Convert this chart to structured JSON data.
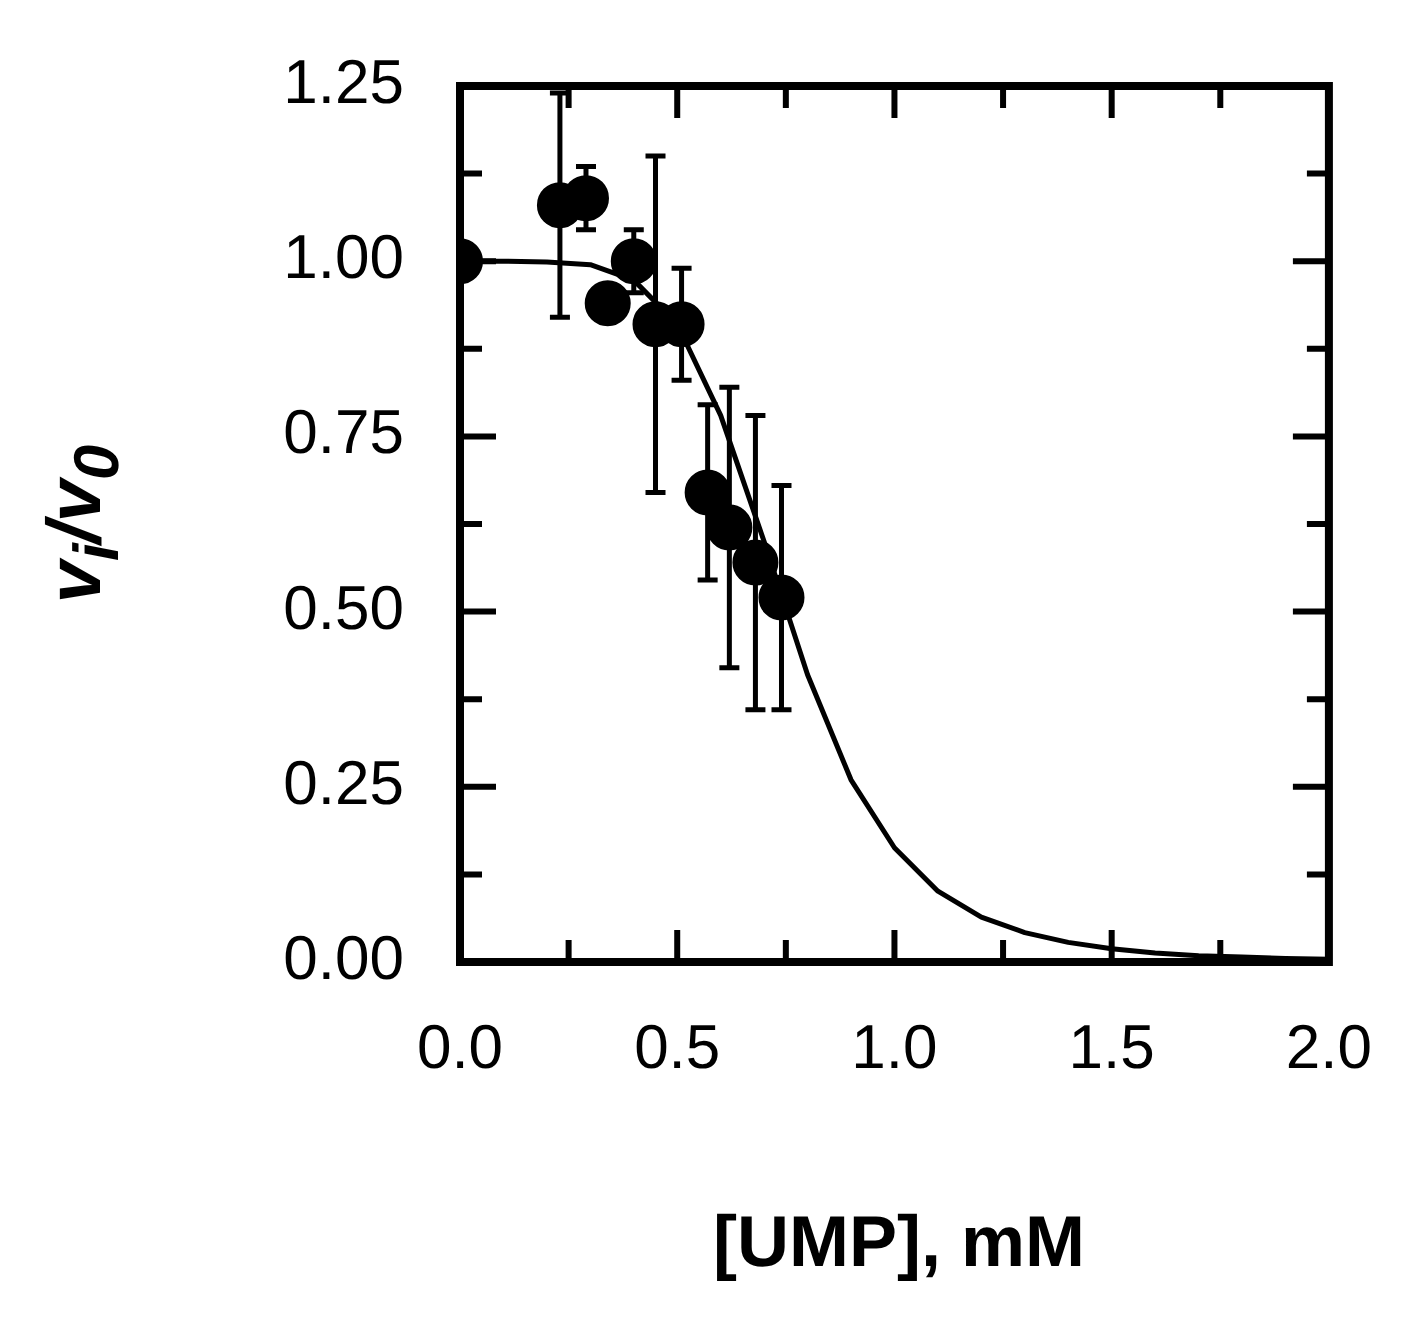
{
  "chart_data": {
    "type": "scatter",
    "xlabel": "[UMP], mM",
    "ylabel": "v$_{i}$/v$_{0}$",
    "xlim": [
      0,
      2
    ],
    "ylim": [
      0,
      1.25
    ],
    "xticks": [
      {
        "value": 0,
        "label": "0.0"
      },
      {
        "value": 0.25,
        "label": null
      },
      {
        "value": 0.5,
        "label": "0.5"
      },
      {
        "value": 0.75,
        "label": null
      },
      {
        "value": 1,
        "label": "1.0"
      },
      {
        "value": 1.25,
        "label": null
      },
      {
        "value": 1.5,
        "label": "1.5"
      },
      {
        "value": 1.75,
        "label": null
      },
      {
        "value": 2,
        "label": "2.0"
      }
    ],
    "yticks": [
      {
        "value": 0,
        "label": "0.00"
      },
      {
        "value": 0.125,
        "label": null
      },
      {
        "value": 0.25,
        "label": "0.25"
      },
      {
        "value": 0.375,
        "label": null
      },
      {
        "value": 0.5,
        "label": "0.50"
      },
      {
        "value": 0.625,
        "label": null
      },
      {
        "value": 0.75,
        "label": "0.75"
      },
      {
        "value": 0.875,
        "label": null
      },
      {
        "value": 1,
        "label": "1.00"
      },
      {
        "value": 1.125,
        "label": null
      },
      {
        "value": 1.25,
        "label": "1.25"
      }
    ],
    "series": [
      {
        "marker": "circle",
        "color": "#000000",
        "x": [
          0,
          0.23,
          0.29,
          0.34,
          0.4,
          0.45,
          0.51,
          0.57,
          0.62,
          0.68,
          0.74
        ],
        "values": [
          1.0,
          1.08,
          1.09,
          0.94,
          1.0,
          0.91,
          0.91,
          0.67,
          0.62,
          0.57,
          0.52
        ],
        "errors": [
          null,
          0.16,
          0.045,
          null,
          0.045,
          0.24,
          0.08,
          0.125,
          0.2,
          0.21,
          0.16
        ]
      },
      {
        "type": "line",
        "marker": "none",
        "color": "#000000",
        "x": [
          0,
          0.1,
          0.2,
          0.3,
          0.4,
          0.5,
          0.6,
          0.7,
          0.8,
          0.9,
          1.0,
          1.1,
          1.2,
          1.3,
          1.4,
          1.5,
          1.6,
          1.7,
          1.8,
          1.9,
          2.0
        ],
        "values": [
          1.0,
          1.0,
          0.999,
          0.995,
          0.973,
          0.91,
          0.78,
          0.6,
          0.41,
          0.26,
          0.163,
          0.101,
          0.064,
          0.042,
          0.028,
          0.019,
          0.013,
          0.009,
          0.007,
          0.005,
          0.004
        ]
      }
    ]
  }
}
